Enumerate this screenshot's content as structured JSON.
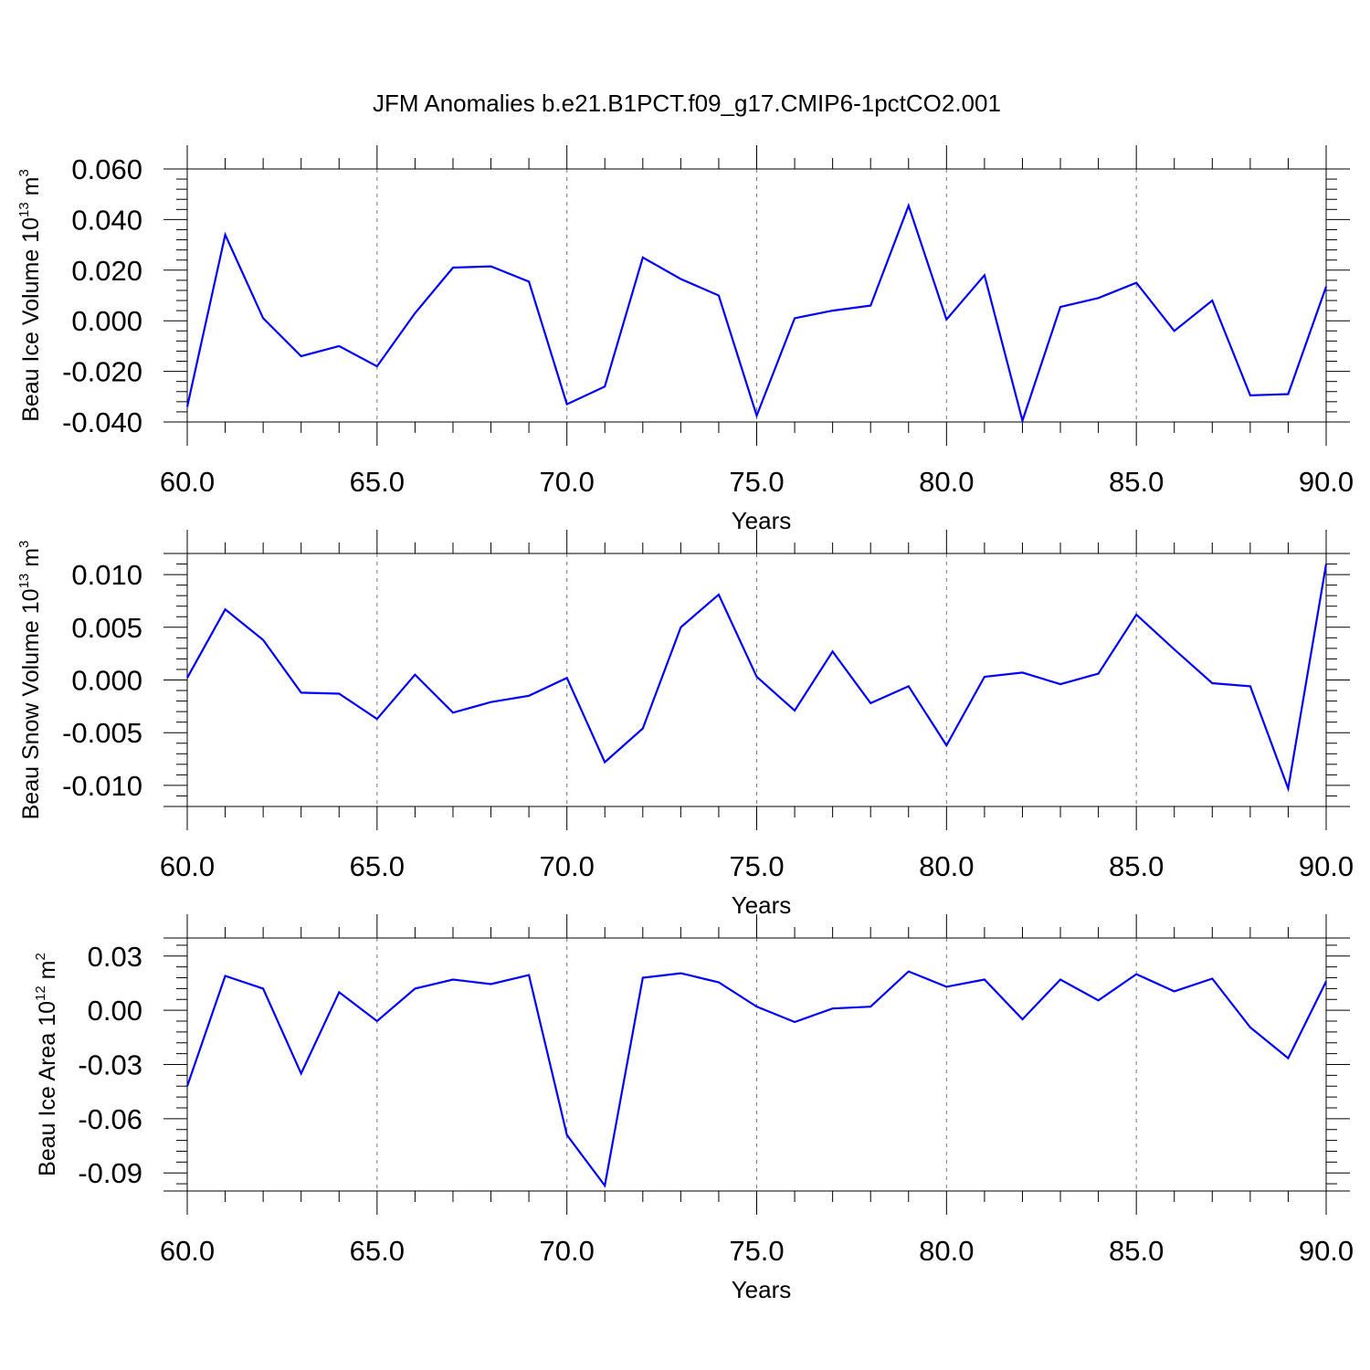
{
  "title": "JFM Anomalies b.e21.B1PCT.f09_g17.CMIP6-1pctCO2.001",
  "line_color": "#0000ff",
  "chart_data": [
    {
      "type": "line",
      "ylabel_main": "Beau Ice Volume 10",
      "ylabel_exp": "13",
      "ylabel_unit": " m",
      "ylabel_unit_exp": "3",
      "xlabel": "Years",
      "xlim": [
        60,
        90
      ],
      "ylim": [
        -0.04,
        0.06
      ],
      "x_ticks": [
        60,
        65,
        70,
        75,
        80,
        85,
        90
      ],
      "x_tick_labels": [
        "60.0",
        "65.0",
        "70.0",
        "75.0",
        "80.0",
        "85.0",
        "90.0"
      ],
      "y_ticks": [
        -0.04,
        -0.02,
        0.0,
        0.02,
        0.04,
        0.06
      ],
      "y_tick_labels": [
        "-0.040",
        "-0.020",
        "0.000",
        "0.020",
        "0.040",
        "0.060"
      ],
      "grid": "vertical dashed at major x ticks",
      "x": [
        60,
        61,
        62,
        63,
        64,
        65,
        66,
        67,
        68,
        69,
        70,
        71,
        72,
        73,
        74,
        75,
        76,
        77,
        78,
        79,
        80,
        81,
        82,
        83,
        84,
        85,
        86,
        87,
        88,
        89,
        90
      ],
      "y": [
        -0.034,
        0.034,
        0.001,
        -0.014,
        -0.01,
        -0.018,
        0.003,
        0.021,
        0.0215,
        0.0155,
        -0.033,
        -0.026,
        0.025,
        0.0165,
        0.01,
        -0.0375,
        0.001,
        0.004,
        0.006,
        0.0455,
        0.0005,
        0.018,
        -0.0395,
        0.0055,
        0.009,
        0.015,
        -0.004,
        0.008,
        -0.0295,
        -0.029,
        0.0135
      ]
    },
    {
      "type": "line",
      "ylabel_main": "Beau Snow Volume 10",
      "ylabel_exp": "13",
      "ylabel_unit": " m",
      "ylabel_unit_exp": "3",
      "xlabel": "Years",
      "xlim": [
        60,
        90
      ],
      "ylim": [
        -0.012,
        0.012
      ],
      "x_ticks": [
        60,
        65,
        70,
        75,
        80,
        85,
        90
      ],
      "x_tick_labels": [
        "60.0",
        "65.0",
        "70.0",
        "75.0",
        "80.0",
        "85.0",
        "90.0"
      ],
      "y_ticks": [
        -0.01,
        -0.005,
        0.0,
        0.005,
        0.01
      ],
      "y_tick_labels": [
        "-0.010",
        "-0.005",
        "0.000",
        "0.005",
        "0.010"
      ],
      "grid": "vertical dashed at major x ticks",
      "x": [
        60,
        61,
        62,
        63,
        64,
        65,
        66,
        67,
        68,
        69,
        70,
        71,
        72,
        73,
        74,
        75,
        76,
        77,
        78,
        79,
        80,
        81,
        82,
        83,
        84,
        85,
        86,
        87,
        88,
        89,
        90
      ],
      "y": [
        0.0002,
        0.0067,
        0.0038,
        -0.0012,
        -0.0013,
        -0.0037,
        0.0005,
        -0.0031,
        -0.0021,
        -0.0015,
        0.0002,
        -0.0078,
        -0.0046,
        0.005,
        0.0081,
        0.0003,
        -0.0029,
        0.0027,
        -0.0022,
        -0.0006,
        -0.0062,
        0.0003,
        0.0007,
        -0.0004,
        0.0006,
        0.0062,
        0.0029,
        -0.0003,
        -0.0006,
        -0.0103,
        0.011
      ]
    },
    {
      "type": "line",
      "ylabel_main": "Beau Ice Area 10",
      "ylabel_exp": "12",
      "ylabel_unit": " m",
      "ylabel_unit_exp": "2",
      "xlabel": "Years",
      "xlim": [
        60,
        90
      ],
      "ylim": [
        -0.1,
        0.04
      ],
      "x_ticks": [
        60,
        65,
        70,
        75,
        80,
        85,
        90
      ],
      "x_tick_labels": [
        "60.0",
        "65.0",
        "70.0",
        "75.0",
        "80.0",
        "85.0",
        "90.0"
      ],
      "y_ticks": [
        -0.09,
        -0.06,
        -0.03,
        0.0,
        0.03
      ],
      "y_tick_labels": [
        "-0.09",
        "-0.06",
        "-0.03",
        "0.00",
        "0.03"
      ],
      "grid": "vertical dashed at major x ticks",
      "x": [
        60,
        61,
        62,
        63,
        64,
        65,
        66,
        67,
        68,
        69,
        70,
        71,
        72,
        73,
        74,
        75,
        76,
        77,
        78,
        79,
        80,
        81,
        82,
        83,
        84,
        85,
        86,
        87,
        88,
        89,
        90
      ],
      "y": [
        -0.042,
        0.019,
        0.012,
        -0.035,
        0.01,
        -0.006,
        0.012,
        0.017,
        0.0145,
        0.0195,
        -0.069,
        -0.097,
        0.018,
        0.0205,
        0.0155,
        0.002,
        -0.0065,
        0.001,
        0.002,
        0.0215,
        0.013,
        0.017,
        -0.005,
        0.017,
        0.0055,
        0.02,
        0.0105,
        0.0175,
        -0.0095,
        -0.0265,
        0.016
      ]
    }
  ]
}
